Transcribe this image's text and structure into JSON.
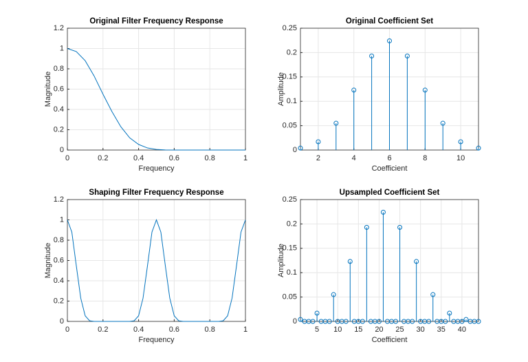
{
  "chart_data": [
    {
      "type": "line",
      "title": "Original Filter Frequency Response",
      "xlabel": "Frequency",
      "ylabel": "Magnitude",
      "color": "#0072bd",
      "grid": true,
      "x": [
        0,
        0.05,
        0.1,
        0.15,
        0.2,
        0.25,
        0.3,
        0.35,
        0.4,
        0.45,
        0.5,
        0.55,
        0.6,
        0.7,
        0.8,
        0.9,
        1
      ],
      "values": [
        1,
        0.97,
        0.88,
        0.73,
        0.55,
        0.38,
        0.23,
        0.12,
        0.055,
        0.02,
        0.006,
        0.001,
        0,
        0,
        0,
        0,
        0
      ],
      "xlim": [
        0,
        1
      ],
      "ylim": [
        0,
        1.2
      ],
      "xticks": [
        0,
        0.2,
        0.4,
        0.6,
        0.8,
        1
      ],
      "yticks": [
        0,
        0.2,
        0.4,
        0.6,
        0.8,
        1,
        1.2
      ]
    },
    {
      "type": "stem",
      "title": "Original Coefficient Set",
      "xlabel": "Coefficient",
      "ylabel": "Amplitude",
      "color": "#0072bd",
      "grid": true,
      "x": [
        1,
        2,
        3,
        4,
        5,
        6,
        7,
        8,
        9,
        10,
        11
      ],
      "values": [
        0.004,
        0.017,
        0.055,
        0.123,
        0.193,
        0.224,
        0.193,
        0.123,
        0.055,
        0.017,
        0.004
      ],
      "xlim": [
        1,
        11
      ],
      "ylim": [
        0,
        0.25
      ],
      "xticks": [
        2,
        4,
        6,
        8,
        10
      ],
      "yticks": [
        0,
        0.05,
        0.1,
        0.15,
        0.2,
        0.25
      ]
    },
    {
      "type": "line",
      "title": "Shaping Filter Frequency Response",
      "xlabel": "Frequency",
      "ylabel": "Magnitude",
      "color": "#0072bd",
      "grid": true,
      "x": [
        0,
        0.025,
        0.05,
        0.075,
        0.1,
        0.125,
        0.15,
        0.175,
        0.2,
        0.225,
        0.25,
        0.275,
        0.3,
        0.325,
        0.35,
        0.375,
        0.4,
        0.425,
        0.45,
        0.475,
        0.5,
        0.525,
        0.55,
        0.575,
        0.6,
        0.625,
        0.65,
        0.675,
        0.7,
        0.725,
        0.75,
        0.775,
        0.8,
        0.825,
        0.85,
        0.875,
        0.9,
        0.925,
        0.95,
        0.975,
        1
      ],
      "values": [
        1,
        0.88,
        0.55,
        0.23,
        0.055,
        0.006,
        0,
        0,
        0,
        0,
        0,
        0,
        0,
        0,
        0,
        0.006,
        0.055,
        0.23,
        0.55,
        0.88,
        1,
        0.88,
        0.55,
        0.23,
        0.055,
        0.006,
        0,
        0,
        0,
        0,
        0,
        0,
        0,
        0,
        0,
        0.006,
        0.055,
        0.23,
        0.55,
        0.88,
        1
      ],
      "xlim": [
        0,
        1
      ],
      "ylim": [
        0,
        1.2
      ],
      "xticks": [
        0,
        0.2,
        0.4,
        0.6,
        0.8,
        1
      ],
      "yticks": [
        0,
        0.2,
        0.4,
        0.6,
        0.8,
        1,
        1.2
      ]
    },
    {
      "type": "stem",
      "title": "Upsampled Coefficient Set",
      "xlabel": "Coefficient",
      "ylabel": "Amplitude",
      "color": "#0072bd",
      "grid": true,
      "x": [
        1,
        2,
        3,
        4,
        5,
        6,
        7,
        8,
        9,
        10,
        11,
        12,
        13,
        14,
        15,
        16,
        17,
        18,
        19,
        20,
        21,
        22,
        23,
        24,
        25,
        26,
        27,
        28,
        29,
        30,
        31,
        32,
        33,
        34,
        35,
        36,
        37,
        38,
        39,
        40,
        41,
        42,
        43,
        44
      ],
      "values": [
        0.004,
        0,
        0,
        0,
        0.017,
        0,
        0,
        0,
        0.055,
        0,
        0,
        0,
        0.123,
        0,
        0,
        0,
        0.193,
        0,
        0,
        0,
        0.224,
        0,
        0,
        0,
        0.193,
        0,
        0,
        0,
        0.123,
        0,
        0,
        0,
        0.055,
        0,
        0,
        0,
        0.017,
        0,
        0,
        0,
        0.004,
        0,
        0,
        0
      ],
      "xlim": [
        1,
        44
      ],
      "ylim": [
        0,
        0.25
      ],
      "xticks": [
        5,
        10,
        15,
        20,
        25,
        30,
        35,
        40
      ],
      "yticks": [
        0,
        0.05,
        0.1,
        0.15,
        0.2,
        0.25
      ]
    }
  ]
}
